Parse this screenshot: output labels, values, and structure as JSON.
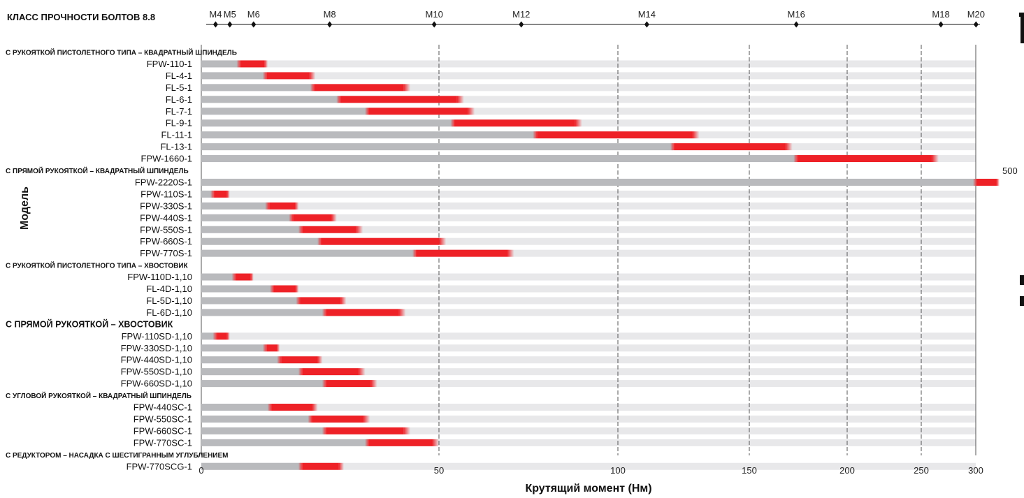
{
  "chart_data": {
    "type": "bar",
    "title": "КЛАСС ПРОЧНОСТИ БОЛТОВ 8.8",
    "xlabel": "Крутящий момент (Нм)",
    "ylabel": "Модель",
    "x_ticks": [
      {
        "label": "0",
        "pos": 0
      },
      {
        "label": "50",
        "pos": 50
      },
      {
        "label": "100",
        "pos": 100
      },
      {
        "label": "150",
        "pos": 150
      },
      {
        "label": "200",
        "pos": 200
      },
      {
        "label": "250",
        "pos": 250
      },
      {
        "label": "300",
        "pos": 300
      }
    ],
    "bolt_sizes": [
      {
        "label": "M4",
        "pos": 3
      },
      {
        "label": "M5",
        "pos": 6
      },
      {
        "label": "M6",
        "pos": 11
      },
      {
        "label": "M8",
        "pos": 27
      },
      {
        "label": "M10",
        "pos": 49
      },
      {
        "label": "M12",
        "pos": 73
      },
      {
        "label": "M14",
        "pos": 111
      },
      {
        "label": "M16",
        "pos": 174
      },
      {
        "label": "M18",
        "pos": 268
      },
      {
        "label": "M20",
        "pos": 302
      }
    ],
    "overflow_label": "500",
    "rows": [
      {
        "type": "group",
        "label": "С РУКОЯТКОЙ ПИСТОЛЕТНОГО ТИПА – КВАДРАТНЫЙ ШПИНДЕЛЬ",
        "big": false
      },
      {
        "type": "bar",
        "label": "FPW-110-1",
        "start": 8,
        "end": 14
      },
      {
        "type": "bar",
        "label": "FL-4-1",
        "start": 13.5,
        "end": 24
      },
      {
        "type": "bar",
        "label": "FL-5-1",
        "start": 23.5,
        "end": 44
      },
      {
        "type": "bar",
        "label": "FL-6-1",
        "start": 29,
        "end": 57
      },
      {
        "type": "bar",
        "label": "FL-7-1",
        "start": 35,
        "end": 60
      },
      {
        "type": "bar",
        "label": "FL-9-1",
        "start": 54,
        "end": 90
      },
      {
        "type": "bar",
        "label": "FL-11-1",
        "start": 77,
        "end": 131
      },
      {
        "type": "bar",
        "label": "FL-13-1",
        "start": 121,
        "end": 172
      },
      {
        "type": "bar",
        "label": "FPW-1660-1",
        "start": 174,
        "end": 266
      },
      {
        "type": "group",
        "label": "С ПРЯМОЙ РУКОЯТКОЙ – КВАДРАТНЫЙ ШПИНДЕЛЬ",
        "big": false
      },
      {
        "type": "bar",
        "label": "FPW-2220S-1",
        "start": 300,
        "end": 500
      },
      {
        "type": "bar",
        "label": "FPW-110S-1",
        "start": 2.5,
        "end": 6
      },
      {
        "type": "bar",
        "label": "FPW-330S-1",
        "start": 14,
        "end": 20.5
      },
      {
        "type": "bar",
        "label": "FPW-440S-1",
        "start": 19,
        "end": 28.5
      },
      {
        "type": "bar",
        "label": "FPW-550S-1",
        "start": 21,
        "end": 34
      },
      {
        "type": "bar",
        "label": "FPW-660S-1",
        "start": 25,
        "end": 52
      },
      {
        "type": "bar",
        "label": "FPW-770S-1",
        "start": 45,
        "end": 71
      },
      {
        "type": "group",
        "label": "С РУКОЯТКОЙ ПИСТОЛЕТНОГО ТИПА – ХВОСТОВИК",
        "big": false
      },
      {
        "type": "bar",
        "label": "FPW-110D-1,10",
        "start": 7,
        "end": 11
      },
      {
        "type": "bar",
        "label": "FL-4D-1,10",
        "start": 15,
        "end": 20.5
      },
      {
        "type": "bar",
        "label": "FL-5D-1,10",
        "start": 20.5,
        "end": 30.5
      },
      {
        "type": "bar",
        "label": "FL-6D-1,10",
        "start": 26,
        "end": 43
      },
      {
        "type": "group",
        "label": "С ПРЯМОЙ РУКОЯТКОЙ – ХВОСТОВИК",
        "big": true
      },
      {
        "type": "bar",
        "label": "FPW-110SD-1,10",
        "start": 3,
        "end": 6
      },
      {
        "type": "bar",
        "label": "FPW-330SD-1,10",
        "start": 13.5,
        "end": 16.5
      },
      {
        "type": "bar",
        "label": "FPW-440SD-1,10",
        "start": 16.5,
        "end": 25.5
      },
      {
        "type": "bar",
        "label": "FPW-550SD-1,10",
        "start": 21,
        "end": 34.5
      },
      {
        "type": "bar",
        "label": "FPW-660SD-1,10",
        "start": 26,
        "end": 37
      },
      {
        "type": "group",
        "label": "С УГЛОВОЙ РУКОЯТКОЙ – КВАДРАТНЫЙ ШПИНДЕЛЬ",
        "big": false
      },
      {
        "type": "bar",
        "label": "FPW-440SC-1",
        "start": 14.5,
        "end": 24.5
      },
      {
        "type": "bar",
        "label": "FPW-550SC-1",
        "start": 23,
        "end": 35.5
      },
      {
        "type": "bar",
        "label": "FPW-660SC-1",
        "start": 26,
        "end": 44
      },
      {
        "type": "bar",
        "label": "FPW-770SC-1",
        "start": 35,
        "end": 50
      },
      {
        "type": "group",
        "label": "С РЕДУКТОРОМ – НАСАДКА С ШЕСТИГРАННЫМ УГЛУБЛЕНИЕМ",
        "big": false
      },
      {
        "type": "bar",
        "label": "FPW-770SCG-1",
        "start": 21,
        "end": 30
      }
    ],
    "colors": {
      "track": "#e8e8ea",
      "base": "#b9babd",
      "range": "#ee2127",
      "grid": "#555555",
      "text": "#111111"
    }
  }
}
